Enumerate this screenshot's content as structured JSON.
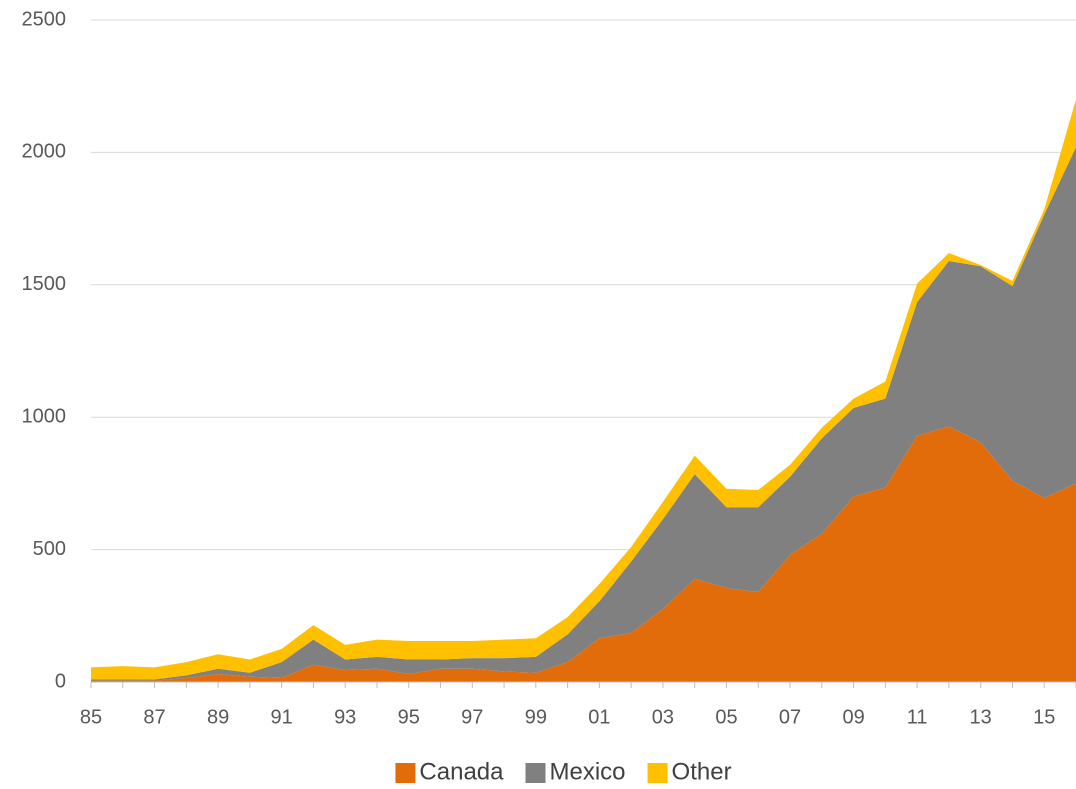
{
  "chart_data": {
    "type": "area",
    "categories": [
      "85",
      null,
      "87",
      null,
      "89",
      null,
      "91",
      null,
      "93",
      null,
      "95",
      null,
      "97",
      null,
      "99",
      null,
      "01",
      null,
      "03",
      null,
      "05",
      null,
      "07",
      null,
      "09",
      null,
      "11",
      null,
      "13",
      null,
      "15",
      null
    ],
    "series": [
      {
        "name": "Canada",
        "color": "#e36c0a",
        "values": [
          5,
          5,
          5,
          15,
          30,
          20,
          15,
          65,
          45,
          50,
          30,
          50,
          50,
          40,
          35,
          75,
          165,
          185,
          275,
          390,
          355,
          340,
          480,
          560,
          700,
          735,
          930,
          965,
          905,
          760,
          695,
          750
        ]
      },
      {
        "name": "Mexico",
        "color": "#808080",
        "values": [
          5,
          5,
          5,
          10,
          20,
          15,
          60,
          95,
          40,
          45,
          55,
          35,
          40,
          50,
          60,
          105,
          140,
          270,
          340,
          395,
          305,
          320,
          295,
          360,
          335,
          335,
          505,
          625,
          665,
          735,
          1070,
          1270
        ]
      },
      {
        "name": "Other",
        "color": "#ffc000",
        "values": [
          45,
          50,
          45,
          50,
          55,
          50,
          50,
          55,
          55,
          65,
          70,
          70,
          65,
          70,
          70,
          65,
          65,
          55,
          65,
          70,
          70,
          65,
          45,
          40,
          35,
          65,
          70,
          30,
          5,
          20,
          20,
          180
        ]
      }
    ],
    "stacked": true,
    "ylim": [
      0,
      2500
    ],
    "yticks": [
      0,
      500,
      1000,
      1500,
      2000,
      2500
    ],
    "grid": true,
    "legend": "bottom"
  }
}
